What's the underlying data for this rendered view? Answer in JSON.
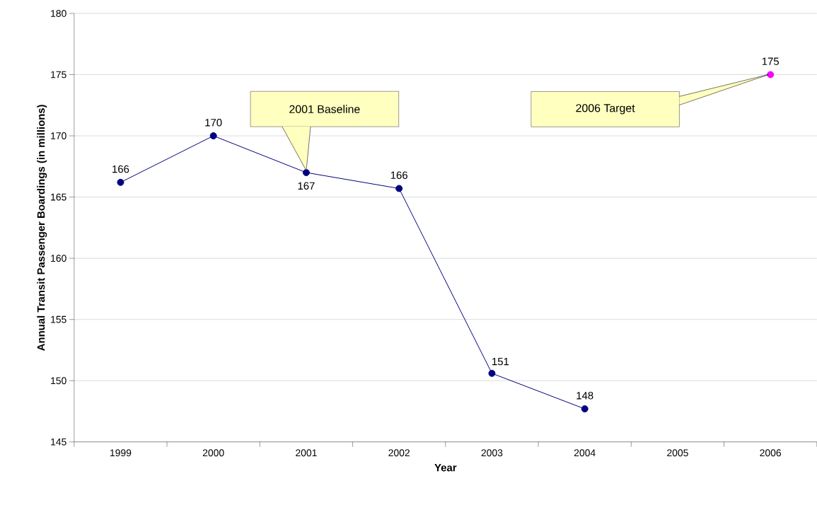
{
  "chart_data": {
    "type": "line",
    "xlabel": "Year",
    "ylabel": "Annual Transit Passenger Boardings (in millions)",
    "categories": [
      "1999",
      "2000",
      "2001",
      "2002",
      "2003",
      "2004",
      "2005",
      "2006"
    ],
    "series": [
      {
        "color": "#000080",
        "values": [
          166.2,
          170,
          167,
          165.7,
          150.6,
          147.7,
          null,
          null
        ],
        "value_labels": [
          "166",
          "170",
          "167",
          "166",
          "151",
          "148",
          null,
          null
        ]
      },
      {
        "type": "scatter",
        "color": "#ff00ff",
        "values": [
          null,
          null,
          null,
          null,
          null,
          null,
          null,
          175
        ],
        "value_labels": [
          null,
          null,
          null,
          null,
          null,
          null,
          null,
          "175"
        ]
      }
    ],
    "ylim": [
      145,
      180
    ],
    "yticks": [
      145,
      150,
      155,
      160,
      165,
      170,
      175,
      180
    ],
    "grid": "y",
    "marker": "circle",
    "annotations": [
      "2001 Baseline",
      "2006 Target"
    ]
  }
}
